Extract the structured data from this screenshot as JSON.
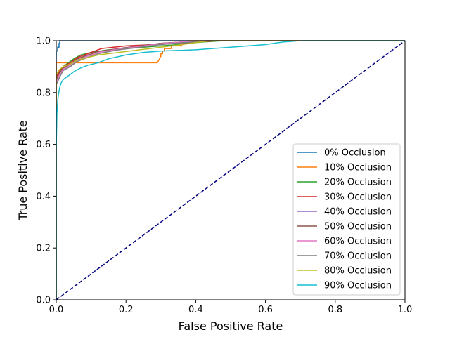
{
  "chart_data": {
    "type": "line",
    "title": "",
    "xlabel": "False Positive Rate",
    "ylabel": "True Positive Rate",
    "xlim": [
      0,
      1
    ],
    "ylim": [
      0,
      1
    ],
    "xticks": [
      "0.0",
      "0.2",
      "0.4",
      "0.6",
      "0.8",
      "1.0"
    ],
    "yticks": [
      "0.0",
      "0.2",
      "0.4",
      "0.6",
      "0.8",
      "1.0"
    ],
    "grid": false,
    "legend_position": "lower-right",
    "diagonal": {
      "x": [
        0,
        1
      ],
      "y": [
        0,
        1
      ],
      "color": "#000080",
      "style": "dashed"
    },
    "series": [
      {
        "name": "0% Occlusion",
        "color": "#1f77b4",
        "x": [
          0,
          0,
          0.004,
          0.004,
          0.008,
          0.008,
          0.01,
          0.01,
          1
        ],
        "y": [
          0,
          0.96,
          0.96,
          0.975,
          0.975,
          0.99,
          0.99,
          1,
          1
        ]
      },
      {
        "name": "10% Occlusion",
        "color": "#ff7f0e",
        "x": [
          0,
          0,
          0.02,
          0.02,
          0.29,
          0.3,
          0.3,
          0.305,
          0.305,
          0.31,
          0.31,
          0.33,
          0.33,
          0.36,
          0.36,
          0.38,
          0.38,
          1
        ],
        "y": [
          0,
          0.915,
          0.915,
          0.915,
          0.915,
          0.94,
          0.95,
          0.95,
          0.96,
          0.96,
          0.97,
          0.97,
          0.98,
          0.98,
          0.99,
          0.99,
          1,
          1
        ]
      },
      {
        "name": "20% Occlusion",
        "color": "#2ca02c",
        "x": [
          0,
          0,
          0.01,
          0.02,
          0.03,
          0.05,
          0.07,
          0.1,
          0.15,
          0.2,
          0.25,
          0.3,
          0.35,
          0.38,
          0.42,
          0.48,
          1
        ],
        "y": [
          0,
          0.85,
          0.88,
          0.9,
          0.91,
          0.93,
          0.945,
          0.955,
          0.965,
          0.97,
          0.975,
          0.98,
          0.985,
          0.99,
          0.995,
          1,
          1
        ]
      },
      {
        "name": "30% Occlusion",
        "color": "#d62728",
        "x": [
          0,
          0,
          0.01,
          0.02,
          0.04,
          0.06,
          0.08,
          0.1,
          0.13,
          0.2,
          0.28,
          0.34,
          0.4,
          0.46,
          1
        ],
        "y": [
          0,
          0.86,
          0.885,
          0.9,
          0.915,
          0.935,
          0.945,
          0.955,
          0.97,
          0.98,
          0.985,
          0.99,
          0.995,
          1,
          1
        ]
      },
      {
        "name": "40% Occlusion",
        "color": "#9467bd",
        "x": [
          0,
          0,
          0.01,
          0.02,
          0.04,
          0.06,
          0.08,
          0.12,
          0.18,
          0.24,
          0.3,
          0.36,
          0.42,
          1
        ],
        "y": [
          0,
          0.84,
          0.87,
          0.89,
          0.905,
          0.925,
          0.94,
          0.955,
          0.97,
          0.98,
          0.99,
          0.995,
          1,
          1
        ]
      },
      {
        "name": "50% Occlusion",
        "color": "#8c564b",
        "x": [
          0,
          0,
          0.01,
          0.02,
          0.04,
          0.06,
          0.09,
          0.12,
          0.18,
          0.24,
          0.3,
          0.36,
          0.44,
          1
        ],
        "y": [
          0,
          0.85,
          0.875,
          0.895,
          0.91,
          0.93,
          0.945,
          0.958,
          0.97,
          0.98,
          0.99,
          0.995,
          1,
          1
        ]
      },
      {
        "name": "60% Occlusion",
        "color": "#e377c2",
        "x": [
          0,
          0,
          0.01,
          0.02,
          0.04,
          0.06,
          0.09,
          0.12,
          0.18,
          0.24,
          0.3,
          0.36,
          0.44,
          1
        ],
        "y": [
          0,
          0.84,
          0.87,
          0.89,
          0.905,
          0.925,
          0.94,
          0.955,
          0.968,
          0.978,
          0.988,
          0.995,
          1,
          1
        ]
      },
      {
        "name": "70% Occlusion",
        "color": "#7f7f7f",
        "x": [
          0,
          0,
          0.01,
          0.02,
          0.04,
          0.06,
          0.09,
          0.12,
          0.18,
          0.24,
          0.3,
          0.36,
          0.44,
          1
        ],
        "y": [
          0,
          0.83,
          0.86,
          0.885,
          0.9,
          0.92,
          0.935,
          0.95,
          0.965,
          0.975,
          0.985,
          0.992,
          1,
          1
        ]
      },
      {
        "name": "80% Occlusion",
        "color": "#bcbd22",
        "x": [
          0,
          0,
          0.01,
          0.02,
          0.04,
          0.06,
          0.09,
          0.12,
          0.18,
          0.24,
          0.3,
          0.36,
          0.44,
          1
        ],
        "y": [
          0,
          0.87,
          0.89,
          0.9,
          0.91,
          0.925,
          0.935,
          0.945,
          0.955,
          0.965,
          0.975,
          0.985,
          1,
          1
        ]
      },
      {
        "name": "90% Occlusion",
        "color": "#17becf",
        "x": [
          0,
          0,
          0.002,
          0.005,
          0.01,
          0.015,
          0.02,
          0.03,
          0.04,
          0.05,
          0.07,
          0.09,
          0.12,
          0.15,
          0.2,
          0.25,
          0.3,
          0.4,
          0.5,
          0.6,
          0.65,
          0.7,
          1
        ],
        "y": [
          0,
          0.58,
          0.72,
          0.78,
          0.82,
          0.84,
          0.85,
          0.86,
          0.87,
          0.88,
          0.895,
          0.905,
          0.915,
          0.93,
          0.945,
          0.955,
          0.96,
          0.965,
          0.975,
          0.985,
          0.995,
          1,
          1
        ]
      }
    ]
  }
}
